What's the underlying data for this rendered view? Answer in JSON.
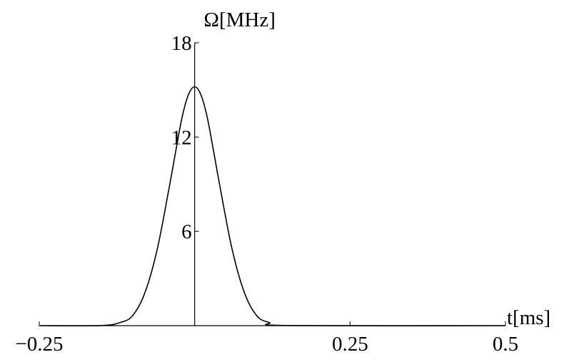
{
  "chart_data": {
    "type": "line",
    "title": "",
    "xlabel": "t[ms]",
    "ylabel": "Ω[MHz]",
    "xlim": [
      -0.25,
      0.5
    ],
    "ylim": [
      0,
      18
    ],
    "x_ticks": [
      -0.25,
      0.25,
      0.5
    ],
    "x_tick_labels": [
      "−0.25",
      "0.25",
      "0.5"
    ],
    "y_ticks": [
      6,
      12,
      18
    ],
    "y_tick_labels": [
      "6",
      "12",
      "18"
    ],
    "grid": false,
    "series": [
      {
        "x": [
          -0.25,
          -0.15,
          -0.12,
          -0.1,
          -0.08,
          -0.06,
          -0.04,
          -0.03,
          -0.02,
          -0.01,
          0,
          0.01,
          0.02,
          0.03,
          0.04,
          0.06,
          0.08,
          0.1,
          0.12,
          0.15,
          0.5
        ],
        "y": [
          0,
          0.01,
          0.2,
          0.63,
          2.1,
          4.9,
          9.0,
          11.2,
          13.3,
          14.7,
          15.2,
          14.7,
          13.3,
          11.2,
          9.0,
          4.9,
          2.1,
          0.63,
          0.2,
          0.01,
          0
        ]
      }
    ],
    "color": "#000000"
  }
}
